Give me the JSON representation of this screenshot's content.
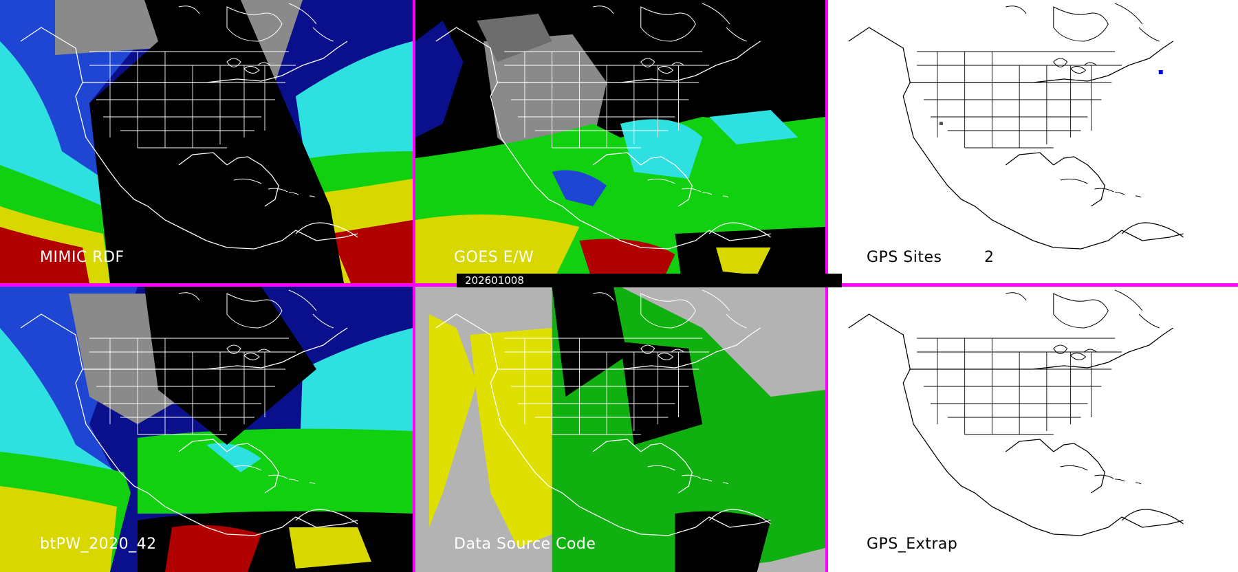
{
  "panels": [
    {
      "id": "mimic",
      "label": "MIMIC RDF"
    },
    {
      "id": "goes",
      "label": "GOES E/W"
    },
    {
      "id": "gps-sites",
      "label": "GPS Sites",
      "count": "2"
    },
    {
      "id": "btpw",
      "label": "btPW_2020_42"
    },
    {
      "id": "source",
      "label": "Data Source Code"
    },
    {
      "id": "gps-extrap",
      "label": "GPS_Extrap"
    }
  ],
  "date_bar": "202601008",
  "colors": {
    "divider": "#ff00ff",
    "deep_blue": "#0a0f8c",
    "blue": "#1e46d2",
    "cyan": "#2fe0e0",
    "green": "#10d010",
    "yellow": "#d8d800",
    "red": "#b00000",
    "grey_cloud": "#8a8a8a",
    "source_grey": "#b3b3b3",
    "source_yellow": "#e0e000",
    "source_green": "#10b010"
  },
  "icons": {
    "basemap": "north-america-outline"
  }
}
